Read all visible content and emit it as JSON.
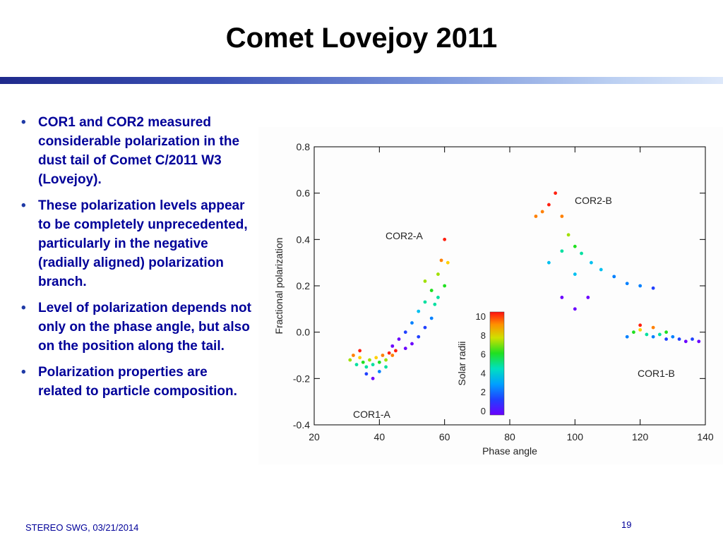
{
  "slide": {
    "title": "Comet Lovejoy 2011",
    "bullets": [
      "COR1 and COR2 measured considerable polarization in the dust tail of Comet C/2011 W3 (Lovejoy).",
      "These polarization levels appear to be completely unprecedented, particularly in the negative (radially aligned) polarization branch.",
      "Level of polarization depends not only on the phase angle, but also on the position along the tail.",
      "Polarization properties are related to particle composition."
    ],
    "bullet_glyph": "•",
    "footer_left": "STEREO SWG, 03/21/2014",
    "page_number": "19",
    "accent_color": "#000099"
  },
  "chart_data": {
    "type": "scatter",
    "title": "",
    "xlabel": "Phase angle",
    "ylabel": "Fractional polarization",
    "xlim": [
      20,
      140
    ],
    "ylim": [
      -0.4,
      0.8
    ],
    "x_ticks": [
      20,
      40,
      60,
      80,
      100,
      120,
      140
    ],
    "y_ticks": [
      0.8,
      0.6,
      0.4,
      0.2,
      0.0,
      -0.2,
      -0.4
    ],
    "y_tick_labels": [
      "0.8",
      "0.6",
      "0.4",
      "0.2",
      "0.0",
      "-0.2",
      "-0.4"
    ],
    "grid": false,
    "colorbar": {
      "label": "Solar radii",
      "range": [
        0,
        10
      ],
      "ticks": [
        "10",
        "8",
        "6",
        "4",
        "2",
        "0"
      ]
    },
    "series": [
      {
        "name": "COR1-A",
        "points": [
          [
            31,
            -0.12
          ],
          [
            32,
            -0.1
          ],
          [
            33,
            -0.14
          ],
          [
            34,
            -0.11
          ],
          [
            35,
            -0.13
          ],
          [
            36,
            -0.15
          ],
          [
            37,
            -0.12
          ],
          [
            38,
            -0.14
          ],
          [
            39,
            -0.11
          ],
          [
            40,
            -0.13
          ],
          [
            41,
            -0.1
          ],
          [
            42,
            -0.12
          ],
          [
            43,
            -0.09
          ],
          [
            44,
            -0.1
          ],
          [
            45,
            -0.08
          ],
          [
            36,
            -0.18
          ],
          [
            38,
            -0.2
          ],
          [
            40,
            -0.17
          ],
          [
            34,
            -0.08
          ],
          [
            42,
            -0.15
          ]
        ]
      },
      {
        "name": "COR2-A",
        "points": [
          [
            44,
            -0.06
          ],
          [
            46,
            -0.03
          ],
          [
            48,
            0.0
          ],
          [
            50,
            0.04
          ],
          [
            52,
            0.09
          ],
          [
            54,
            0.13
          ],
          [
            56,
            0.18
          ],
          [
            58,
            0.25
          ],
          [
            59,
            0.31
          ],
          [
            60,
            0.4
          ],
          [
            61,
            0.3
          ],
          [
            60,
            0.2
          ],
          [
            58,
            0.15
          ],
          [
            56,
            0.06
          ],
          [
            54,
            0.02
          ],
          [
            52,
            -0.02
          ],
          [
            50,
            -0.05
          ],
          [
            48,
            -0.07
          ],
          [
            54,
            0.22
          ],
          [
            57,
            0.12
          ]
        ]
      },
      {
        "name": "COR2-B",
        "points": [
          [
            88,
            0.5
          ],
          [
            90,
            0.52
          ],
          [
            92,
            0.55
          ],
          [
            94,
            0.6
          ],
          [
            96,
            0.5
          ],
          [
            98,
            0.42
          ],
          [
            100,
            0.37
          ],
          [
            102,
            0.34
          ],
          [
            105,
            0.3
          ],
          [
            108,
            0.27
          ],
          [
            112,
            0.24
          ],
          [
            116,
            0.21
          ],
          [
            120,
            0.2
          ],
          [
            124,
            0.19
          ],
          [
            96,
            0.35
          ],
          [
            100,
            0.25
          ],
          [
            104,
            0.15
          ],
          [
            92,
            0.3
          ],
          [
            96,
            0.15
          ],
          [
            100,
            0.1
          ]
        ]
      },
      {
        "name": "COR1-B",
        "points": [
          [
            118,
            0.0
          ],
          [
            120,
            0.01
          ],
          [
            122,
            -0.01
          ],
          [
            124,
            -0.02
          ],
          [
            126,
            -0.01
          ],
          [
            128,
            -0.03
          ],
          [
            130,
            -0.02
          ],
          [
            132,
            -0.03
          ],
          [
            134,
            -0.04
          ],
          [
            136,
            -0.03
          ],
          [
            138,
            -0.04
          ],
          [
            120,
            0.03
          ],
          [
            124,
            0.02
          ],
          [
            116,
            -0.02
          ],
          [
            128,
            0.0
          ]
        ]
      }
    ]
  }
}
